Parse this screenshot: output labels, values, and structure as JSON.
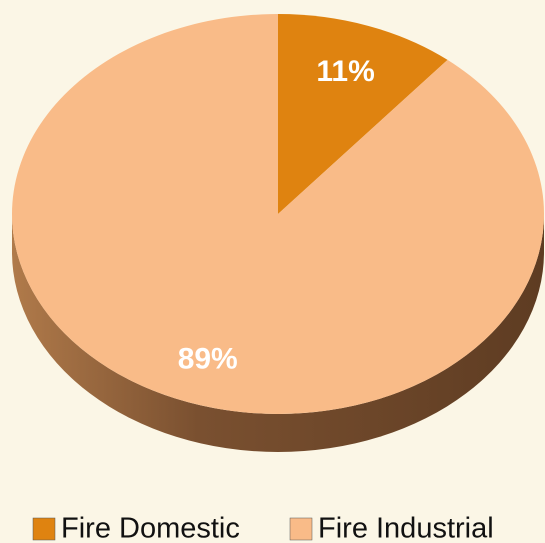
{
  "chart_data": {
    "type": "pie",
    "categories": [
      "Fire Domestic",
      "Fire Industrial"
    ],
    "values": [
      11,
      89
    ],
    "value_labels": [
      "11%",
      "89%"
    ],
    "colors": [
      "#df8310",
      "#f9bb88"
    ],
    "legend": "bottom"
  }
}
